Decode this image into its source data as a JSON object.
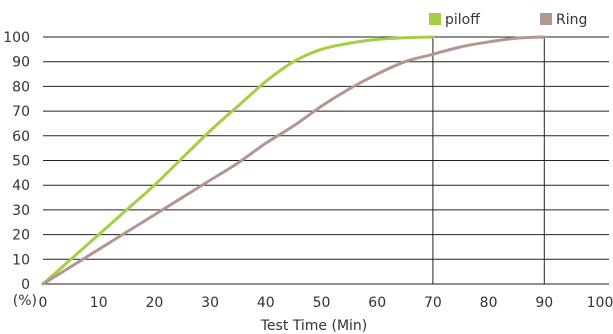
{
  "chart_data": {
    "type": "line",
    "title": "",
    "xlabel": "Test Time (Min)",
    "ylabel": "",
    "y_unit_label": "(%)",
    "x_ticks": [
      0,
      10,
      20,
      30,
      40,
      50,
      60,
      70,
      80,
      90,
      100
    ],
    "y_ticks": [
      0,
      10,
      20,
      30,
      40,
      50,
      60,
      70,
      80,
      90,
      100
    ],
    "xlim": [
      0,
      100
    ],
    "ylim": [
      0,
      100
    ],
    "grid": "horizontal",
    "reference_lines_x": [
      70,
      90
    ],
    "legend_position": "top-right",
    "series": [
      {
        "name": "piloff",
        "color": "#a3cf45",
        "points": [
          [
            0,
            0
          ],
          [
            5,
            10
          ],
          [
            10,
            20
          ],
          [
            15,
            30
          ],
          [
            20,
            40
          ],
          [
            25,
            51
          ],
          [
            30,
            62
          ],
          [
            35,
            72
          ],
          [
            40,
            82
          ],
          [
            45,
            90
          ],
          [
            50,
            95
          ],
          [
            55,
            97.5
          ],
          [
            60,
            99
          ],
          [
            65,
            99.7
          ],
          [
            70,
            100
          ]
        ]
      },
      {
        "name": "Ring",
        "color": "#b3978f",
        "points": [
          [
            0,
            0
          ],
          [
            5,
            7
          ],
          [
            10,
            14
          ],
          [
            15,
            21
          ],
          [
            20,
            28
          ],
          [
            25,
            35
          ],
          [
            30,
            42
          ],
          [
            35,
            49
          ],
          [
            40,
            57
          ],
          [
            45,
            64
          ],
          [
            50,
            72
          ],
          [
            55,
            79
          ],
          [
            60,
            85
          ],
          [
            65,
            90
          ],
          [
            70,
            93
          ],
          [
            75,
            96
          ],
          [
            80,
            98
          ],
          [
            85,
            99.5
          ],
          [
            90,
            100
          ]
        ]
      }
    ]
  }
}
